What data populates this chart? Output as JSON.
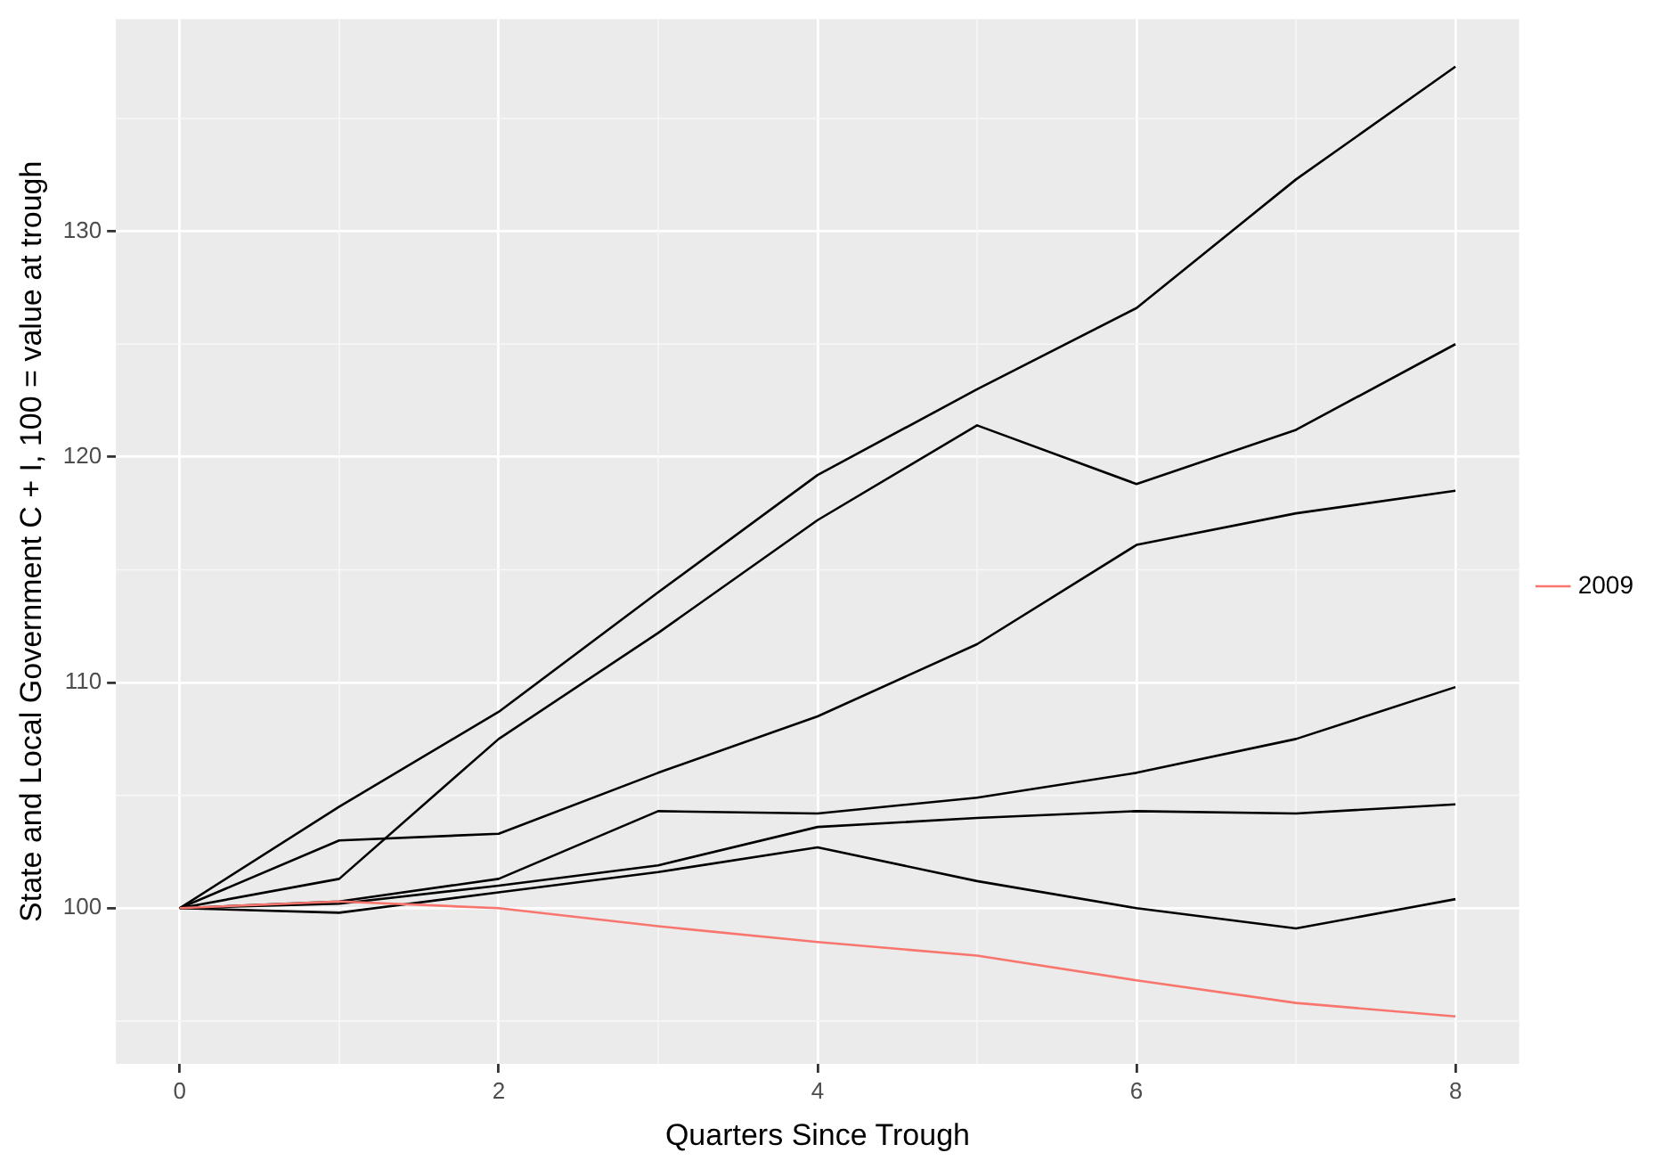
{
  "chart_data": {
    "type": "line",
    "xlabel": "Quarters Since Trough",
    "ylabel": "State and Local Government C + I, 100 = value at trough",
    "x": [
      0,
      1,
      2,
      3,
      4,
      5,
      6,
      7,
      8
    ],
    "series": [
      {
        "color": "#000000",
        "values": [
          100,
          104.5,
          108.7,
          114,
          119.2,
          123,
          126.6,
          132.3,
          137.3
        ]
      },
      {
        "color": "#000000",
        "values": [
          100,
          101.3,
          107.5,
          112.2,
          117.2,
          121.4,
          118.8,
          121.2,
          125
        ]
      },
      {
        "color": "#000000",
        "values": [
          100,
          103,
          103.3,
          106,
          108.5,
          111.7,
          116.1,
          117.5,
          118.5
        ]
      },
      {
        "color": "#000000",
        "values": [
          100,
          100.3,
          101.3,
          104.3,
          104.2,
          104.9,
          106,
          107.5,
          109.8
        ]
      },
      {
        "color": "#000000",
        "values": [
          100,
          100.2,
          101,
          101.9,
          103.6,
          104,
          104.3,
          104.2,
          104.6
        ]
      },
      {
        "color": "#000000",
        "values": [
          100,
          99.8,
          100.7,
          101.6,
          102.7,
          101.2,
          100,
          99.1,
          100.4
        ]
      },
      {
        "name": "2009",
        "color": "#f8766d",
        "values": [
          100,
          100.3,
          100,
          99.2,
          98.5,
          97.9,
          96.8,
          95.8,
          95.2
        ]
      }
    ],
    "xlim": [
      -0.4,
      8.4
    ],
    "xticks": [
      0,
      2,
      4,
      6,
      8
    ],
    "ylim": [
      93.1,
      139.4
    ],
    "yticks": [
      100,
      110,
      120,
      130
    ],
    "grid": true,
    "legend": "right",
    "marker": "none",
    "line_style": "solid"
  }
}
